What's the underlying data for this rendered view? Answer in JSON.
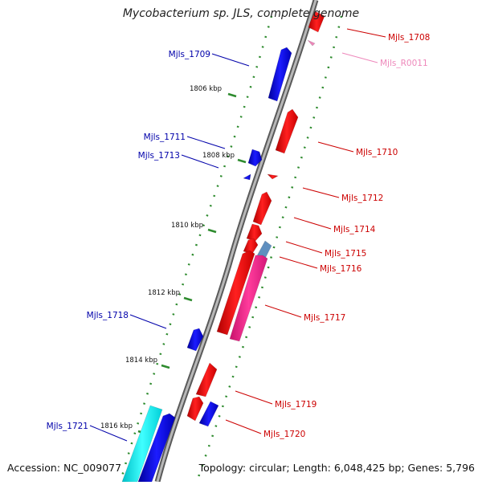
{
  "title": "Mycobacterium sp. JLS, complete genome",
  "footer": {
    "accession": "Accession: NC_009077",
    "summary": "Topology: circular; Length: 6,048,425 bp; Genes: 5,796"
  },
  "colors": {
    "backbone": "#888888",
    "forward_gene": "#ff0000",
    "reverse_gene": "#0000ff",
    "rna": "#ee88bb",
    "pseudo": "#ff1e8c",
    "misc": "#00ffff",
    "overlap": "#5f8fbf",
    "tick": "#2e8b2e",
    "label_forward": "#cc0000",
    "label_reverse": "#0000aa"
  },
  "ticks": [
    {
      "label": "1806 kbp"
    },
    {
      "label": "1808 kbp"
    },
    {
      "label": "1810 kbp"
    },
    {
      "label": "1812 kbp"
    },
    {
      "label": "1814 kbp"
    },
    {
      "label": "1816 kbp"
    }
  ],
  "labels": [
    {
      "text": "Mjls_1708",
      "strand": "forward"
    },
    {
      "text": "Mjls_R0011",
      "strand": "rna"
    },
    {
      "text": "Mjls_1709",
      "strand": "reverse"
    },
    {
      "text": "Mjls_1710",
      "strand": "forward"
    },
    {
      "text": "Mjls_1711",
      "strand": "reverse"
    },
    {
      "text": "Mjls_1713",
      "strand": "reverse"
    },
    {
      "text": "Mjls_1712",
      "strand": "forward"
    },
    {
      "text": "Mjls_1714",
      "strand": "forward"
    },
    {
      "text": "Mjls_1715",
      "strand": "forward"
    },
    {
      "text": "Mjls_1716",
      "strand": "forward"
    },
    {
      "text": "Mjls_1717",
      "strand": "forward"
    },
    {
      "text": "Mjls_1718",
      "strand": "reverse"
    },
    {
      "text": "Mjls_1719",
      "strand": "forward"
    },
    {
      "text": "Mjls_1720",
      "strand": "forward"
    },
    {
      "text": "Mjls_1721",
      "strand": "reverse"
    }
  ]
}
